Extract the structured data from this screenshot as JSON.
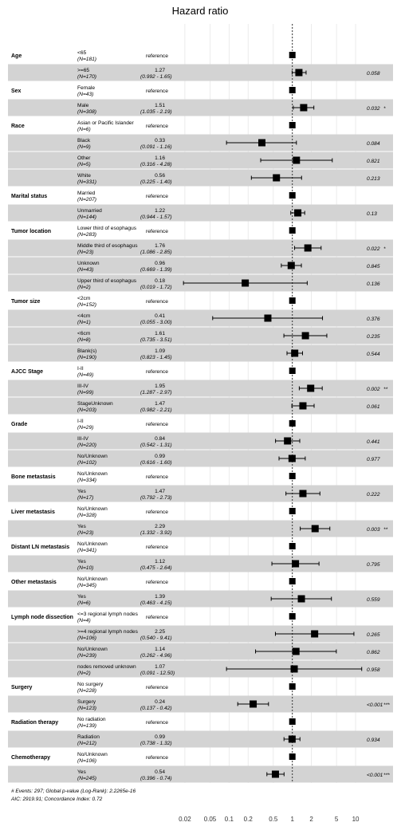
{
  "chart_data": {
    "type": "forest",
    "title": "Hazard ratio",
    "xscale": "log",
    "xlim": [
      0.015,
      15
    ],
    "xticks": [
      "0.02",
      "0.05",
      "0.1",
      "0.2",
      "0.5",
      "1",
      "2",
      "5",
      "10"
    ],
    "reference_line": 1,
    "groups": [
      {
        "name": "Age",
        "rows": [
          {
            "level": "<65",
            "n": "(N=181)",
            "ref": true
          },
          {
            "level": ">=65",
            "n": "(N=170)",
            "hr": 1.27,
            "lo": 0.992,
            "hi": 1.65,
            "est": "1.27",
            "ci": "(0.992 - 1.65)",
            "p": "0.058",
            "stars": ""
          }
        ]
      },
      {
        "name": "Sex",
        "rows": [
          {
            "level": "Female",
            "n": "(N=43)",
            "ref": true
          },
          {
            "level": "Male",
            "n": "(N=308)",
            "hr": 1.51,
            "lo": 1.035,
            "hi": 2.19,
            "est": "1.51",
            "ci": "(1.035 - 2.19)",
            "p": "0.032",
            "stars": "*"
          }
        ]
      },
      {
        "name": "Race",
        "rows": [
          {
            "level": "Asian or Pacific Islander",
            "n": "(N=6)",
            "ref": true
          },
          {
            "level": "Black",
            "n": "(N=9)",
            "hr": 0.33,
            "lo": 0.091,
            "hi": 1.16,
            "est": "0.33",
            "ci": "(0.091 - 1.16)",
            "p": "0.084",
            "stars": ""
          },
          {
            "level": "Other",
            "n": "(N=5)",
            "hr": 1.16,
            "lo": 0.316,
            "hi": 4.28,
            "est": "1.16",
            "ci": "(0.316 - 4.28)",
            "p": "0.821",
            "stars": ""
          },
          {
            "level": "White",
            "n": "(N=331)",
            "hr": 0.56,
            "lo": 0.225,
            "hi": 1.4,
            "est": "0.56",
            "ci": "(0.225 - 1.40)",
            "p": "0.213",
            "stars": ""
          }
        ]
      },
      {
        "name": "Marital status",
        "rows": [
          {
            "level": "Married",
            "n": "(N=207)",
            "ref": true
          },
          {
            "level": "Unmarried",
            "n": "(N=144)",
            "hr": 1.22,
            "lo": 0.944,
            "hi": 1.57,
            "est": "1.22",
            "ci": "(0.944 - 1.57)",
            "p": "0.13",
            "stars": ""
          }
        ]
      },
      {
        "name": "Tumor location",
        "rows": [
          {
            "level": "Lower third of esophagus",
            "n": "(N=283)",
            "ref": true
          },
          {
            "level": "Middle third of esophagus",
            "n": "(N=23)",
            "hr": 1.76,
            "lo": 1.086,
            "hi": 2.85,
            "est": "1.76",
            "ci": "(1.086 - 2.85)",
            "p": "0.022",
            "stars": "*"
          },
          {
            "level": "Unknown",
            "n": "(N=43)",
            "hr": 0.96,
            "lo": 0.669,
            "hi": 1.39,
            "est": "0.96",
            "ci": "(0.669 - 1.39)",
            "p": "0.845",
            "stars": ""
          },
          {
            "level": "Upper third of esophagus",
            "n": "(N=2)",
            "hr": 0.18,
            "lo": 0.019,
            "hi": 1.72,
            "est": "0.18",
            "ci": "(0.019 - 1.72)",
            "p": "0.136",
            "stars": ""
          }
        ]
      },
      {
        "name": "Tumor size",
        "rows": [
          {
            "level": "<2cm",
            "n": "(N=152)",
            "ref": true
          },
          {
            "level": "<4cm",
            "n": "(N=1)",
            "hr": 0.41,
            "lo": 0.055,
            "hi": 3.0,
            "est": "0.41",
            "ci": "(0.055 - 3.00)",
            "p": "0.376",
            "stars": ""
          },
          {
            "level": "<6cm",
            "n": "(N=8)",
            "hr": 1.61,
            "lo": 0.735,
            "hi": 3.51,
            "est": "1.61",
            "ci": "(0.735 - 3.51)",
            "p": "0.235",
            "stars": ""
          },
          {
            "level": "Blank(s)",
            "n": "(N=190)",
            "hr": 1.09,
            "lo": 0.823,
            "hi": 1.45,
            "est": "1.09",
            "ci": "(0.823 - 1.45)",
            "p": "0.544",
            "stars": ""
          }
        ]
      },
      {
        "name": "AJCC Stage",
        "rows": [
          {
            "level": "I-II",
            "n": "(N=49)",
            "ref": true
          },
          {
            "level": "III-IV",
            "n": "(N=99)",
            "hr": 1.95,
            "lo": 1.287,
            "hi": 2.97,
            "est": "1.95",
            "ci": "(1.287 - 2.97)",
            "p": "0.002",
            "stars": "**"
          },
          {
            "level": "StageUnknown",
            "n": "(N=203)",
            "hr": 1.47,
            "lo": 0.982,
            "hi": 2.21,
            "est": "1.47",
            "ci": "(0.982 - 2.21)",
            "p": "0.061",
            "stars": ""
          }
        ]
      },
      {
        "name": "Grade",
        "rows": [
          {
            "level": "I-II",
            "n": "(N=29)",
            "ref": true
          },
          {
            "level": "III-IV",
            "n": "(N=220)",
            "hr": 0.84,
            "lo": 0.542,
            "hi": 1.31,
            "est": "0.84",
            "ci": "(0.542 - 1.31)",
            "p": "0.441",
            "stars": ""
          },
          {
            "level": "No/Unknown",
            "n": "(N=102)",
            "hr": 0.99,
            "lo": 0.616,
            "hi": 1.6,
            "est": "0.99",
            "ci": "(0.616 - 1.60)",
            "p": "0.977",
            "stars": ""
          }
        ]
      },
      {
        "name": "Bone metastasis",
        "rows": [
          {
            "level": "No/Unknown",
            "n": "(N=334)",
            "ref": true
          },
          {
            "level": "Yes",
            "n": "(N=17)",
            "hr": 1.47,
            "lo": 0.792,
            "hi": 2.73,
            "est": "1.47",
            "ci": "(0.792 - 2.73)",
            "p": "0.222",
            "stars": ""
          }
        ]
      },
      {
        "name": "Liver metastasis",
        "rows": [
          {
            "level": "No/Unknown",
            "n": "(N=328)",
            "ref": true
          },
          {
            "level": "Yes",
            "n": "(N=23)",
            "hr": 2.29,
            "lo": 1.332,
            "hi": 3.92,
            "est": "2.29",
            "ci": "(1.332 - 3.92)",
            "p": "0.003",
            "stars": "**"
          }
        ]
      },
      {
        "name": "Distant LN metastasis",
        "rows": [
          {
            "level": "No/Unknown",
            "n": "(N=341)",
            "ref": true
          },
          {
            "level": "Yes",
            "n": "(N=10)",
            "hr": 1.12,
            "lo": 0.475,
            "hi": 2.64,
            "est": "1.12",
            "ci": "(0.475 - 2.64)",
            "p": "0.795",
            "stars": ""
          }
        ]
      },
      {
        "name": "Other metastasis",
        "rows": [
          {
            "level": "No/Unknown",
            "n": "(N=345)",
            "ref": true
          },
          {
            "level": "Yes",
            "n": "(N=6)",
            "hr": 1.39,
            "lo": 0.463,
            "hi": 4.15,
            "est": "1.39",
            "ci": "(0.463 - 4.15)",
            "p": "0.559",
            "stars": ""
          }
        ]
      },
      {
        "name": "Lymph node dissection",
        "rows": [
          {
            "level": "<=3 regional lymph nodes",
            "n": "(N=4)",
            "ref": true
          },
          {
            "level": ">=4 regional lymph nodes",
            "n": "(N=106)",
            "hr": 2.25,
            "lo": 0.54,
            "hi": 9.41,
            "est": "2.25",
            "ci": "(0.540 - 9.41)",
            "p": "0.265",
            "stars": ""
          },
          {
            "level": "No/Unknown",
            "n": "(N=239)",
            "hr": 1.14,
            "lo": 0.262,
            "hi": 4.96,
            "est": "1.14",
            "ci": "(0.262 - 4.96)",
            "p": "0.862",
            "stars": ""
          },
          {
            "level": "nodes removed unknown",
            "n": "(N=2)",
            "hr": 1.07,
            "lo": 0.091,
            "hi": 12.5,
            "est": "1.07",
            "ci": "(0.091 - 12.50)",
            "p": "0.958",
            "stars": ""
          }
        ]
      },
      {
        "name": "Surgery",
        "rows": [
          {
            "level": "No surgery",
            "n": "(N=228)",
            "ref": true
          },
          {
            "level": "Surgery",
            "n": "(N=123)",
            "hr": 0.24,
            "lo": 0.137,
            "hi": 0.42,
            "est": "0.24",
            "ci": "(0.137 - 0.42)",
            "p": "<0.001",
            "stars": "***"
          }
        ]
      },
      {
        "name": "Radiation therapy",
        "rows": [
          {
            "level": "No radiation",
            "n": "(N=139)",
            "ref": true
          },
          {
            "level": "Radiation",
            "n": "(N=212)",
            "hr": 0.99,
            "lo": 0.738,
            "hi": 1.32,
            "est": "0.99",
            "ci": "(0.738 - 1.32)",
            "p": "0.934",
            "stars": ""
          }
        ]
      },
      {
        "name": "Chemotherapy",
        "rows": [
          {
            "level": "No/Unknown",
            "n": "(N=106)",
            "ref": true
          },
          {
            "level": "Yes",
            "n": "(N=245)",
            "hr": 0.54,
            "lo": 0.396,
            "hi": 0.74,
            "est": "0.54",
            "ci": "(0.396 - 0.74)",
            "p": "<0.001",
            "stars": "***"
          }
        ]
      }
    ],
    "reference_label": "reference",
    "footer_line1": "# Events: 297; Global p-value (Log-Rank): 2.2265e-16",
    "footer_line2": "AIC: 2919.91; Concordance Index: 0.72",
    "colors": {
      "band": "#d3d3d3",
      "grid": "#e6e6e6",
      "marker": "#000000"
    }
  }
}
